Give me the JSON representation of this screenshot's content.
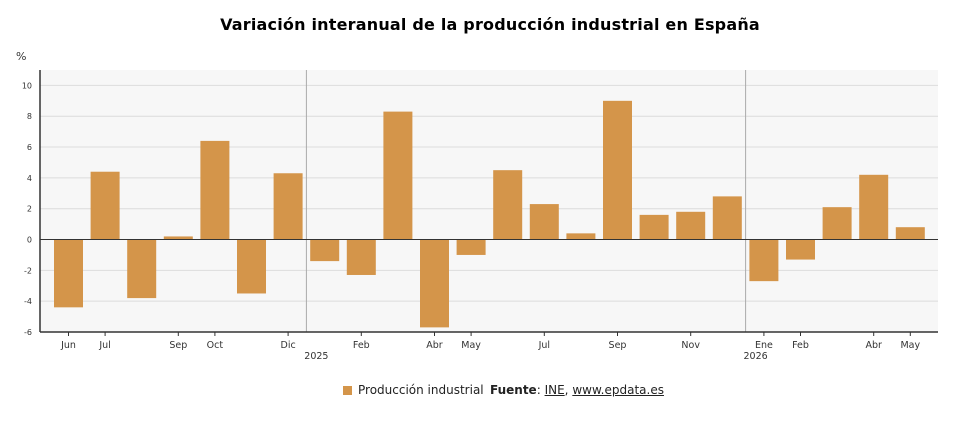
{
  "title": "Variación interanual de la producción industrial en España",
  "unit": "%",
  "legend": {
    "label": "Producción industrial"
  },
  "source": {
    "prefix": "Fuente",
    "sep1": ": ",
    "link1": "INE",
    "sep2": ", ",
    "link2": "www.epdata.es"
  },
  "colors": {
    "bar": "#d4954a",
    "plot_bg": "#f7f7f7",
    "grid": "#dcdcdc",
    "axis": "#333333"
  },
  "chart_data": {
    "type": "bar",
    "title": "Variación interanual de la producción industrial en España",
    "ylabel": "%",
    "ylim": [
      -6,
      11
    ],
    "yticks": [
      10,
      8,
      6,
      4,
      2,
      0,
      -2,
      -4,
      -6
    ],
    "grid": true,
    "legend_position": "bottom",
    "categories": [
      "2024-06",
      "2024-07",
      "2024-08",
      "2024-09",
      "2024-10",
      "2024-11",
      "2024-12",
      "2025-01",
      "2025-02",
      "2025-03",
      "2025-04",
      "2025-05",
      "2025-06",
      "2025-07",
      "2025-08",
      "2025-09",
      "2025-10",
      "2025-11",
      "2025-12",
      "2026-01",
      "2026-02",
      "2026-03",
      "2026-04",
      "2026-05"
    ],
    "tick_labels": [
      "Jun",
      "Jul",
      "",
      "Sep",
      "Oct",
      "",
      "Dic",
      "",
      "Feb",
      "",
      "Abr",
      "May",
      "",
      "Jul",
      "",
      "Sep",
      "",
      "Nov",
      "",
      "Ene",
      "Feb",
      "",
      "Abr",
      "May"
    ],
    "year_labels": [
      {
        "index": 7,
        "label": "2025"
      },
      {
        "index": 19,
        "label": "2026"
      }
    ],
    "series": [
      {
        "name": "Producción industrial",
        "values": [
          -4.4,
          4.4,
          -3.8,
          0.2,
          6.4,
          -3.5,
          4.3,
          -1.4,
          -2.3,
          8.3,
          -5.7,
          -1.0,
          4.5,
          2.3,
          0.4,
          9.0,
          1.6,
          1.8,
          2.8,
          -2.7,
          -1.3,
          2.1,
          4.2,
          0.8
        ]
      }
    ]
  }
}
